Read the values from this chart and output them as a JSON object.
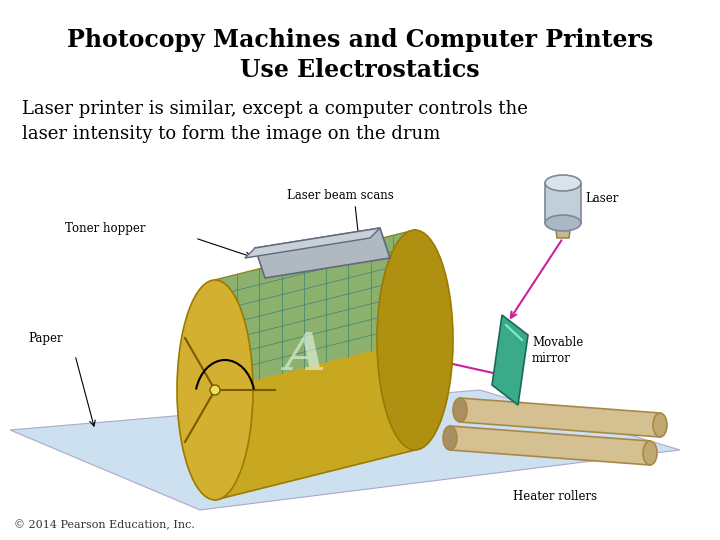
{
  "title_line1": "Photocopy Machines and Computer Printers",
  "title_line2": "Use Electrostatics",
  "body_text": "Laser printer is similar, except a computer controls the\nlaser intensity to form the image on the drum",
  "copyright": "© 2014 Pearson Education, Inc.",
  "background_color": "#ffffff",
  "title_fontsize": 17,
  "body_fontsize": 13,
  "copyright_fontsize": 8,
  "title_color": "#000000",
  "body_color": "#000000"
}
